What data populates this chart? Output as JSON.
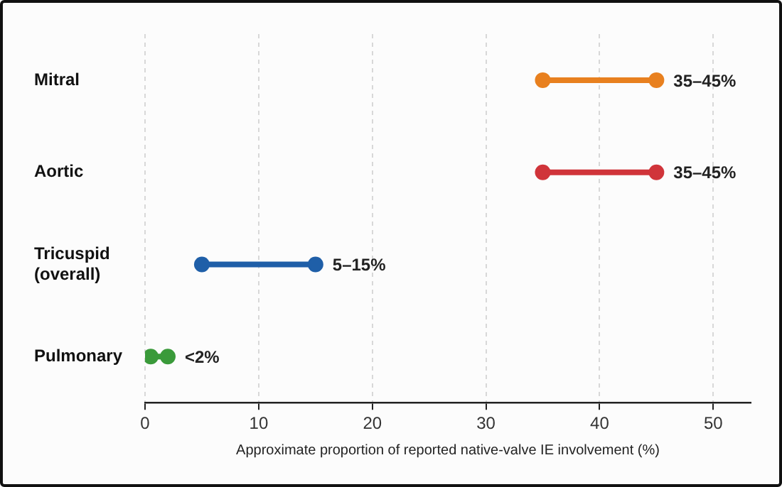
{
  "chart_data": {
    "type": "scatter",
    "orientation": "horizontal",
    "xlabel": "Approximate proportion of reported native-valve IE involvement (%)",
    "categories": [
      "Mitral",
      "Aortic",
      "Tricuspid (overall)",
      "Pulmonary"
    ],
    "series": [
      {
        "values": [
          35,
          35,
          5,
          0.5
        ],
        "colors": [
          "#e8801f",
          "#d0343a",
          "#1f5fa8",
          "#3a9a3a"
        ]
      },
      {
        "values": [
          45,
          45,
          15,
          2
        ],
        "colors": [
          "#e8801f",
          "#d0343a",
          "#1f5fa8",
          "#3a9a3a"
        ]
      }
    ],
    "annotations": [
      {
        "text": "35–45%",
        "x": 45,
        "y": "Mitral"
      },
      {
        "text": "35–45%",
        "x": 45,
        "y": "Aortic"
      },
      {
        "text": "5–15%",
        "x": 15,
        "y": "Tricuspid (overall)"
      },
      {
        "text": "<2%",
        "x": 2,
        "y": "Pulmonary"
      }
    ],
    "xlim": [
      0,
      53.3
    ],
    "xticks": [
      0,
      10,
      20,
      30,
      40,
      50
    ],
    "grid": "x",
    "legend": false,
    "marker": "circle"
  }
}
